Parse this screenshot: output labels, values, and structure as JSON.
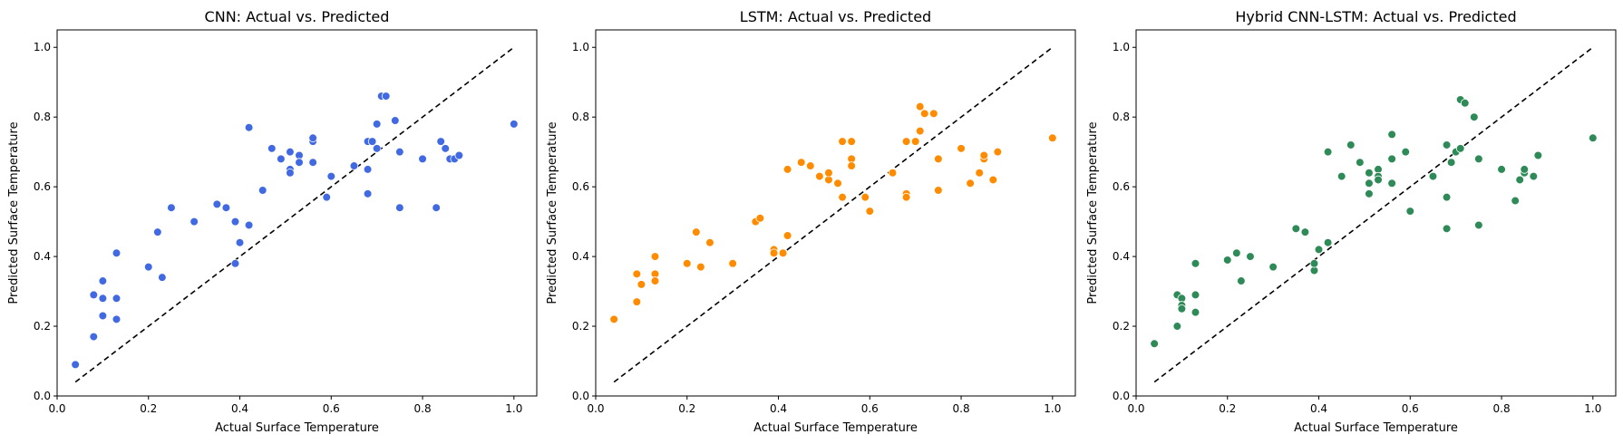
{
  "chart_data": [
    {
      "type": "scatter",
      "title": "CNN: Actual vs. Predicted",
      "xlabel": "Actual Surface Temperature",
      "ylabel": "Predicted Surface Temperature",
      "xlim": [
        0.0,
        1.05
      ],
      "ylim": [
        0.0,
        1.05
      ],
      "xticks": [
        "0.0",
        "0.2",
        "0.4",
        "0.6",
        "0.8",
        "1.0"
      ],
      "yticks": [
        "0.0",
        "0.2",
        "0.4",
        "0.6",
        "0.8",
        "1.0"
      ],
      "color": "#4169e1",
      "reference_line": {
        "x": [
          0.04,
          1.0
        ],
        "y": [
          0.04,
          1.0
        ],
        "style": "dashed",
        "color": "#000000"
      },
      "points": [
        [
          0.04,
          0.09
        ],
        [
          0.08,
          0.29
        ],
        [
          0.08,
          0.17
        ],
        [
          0.1,
          0.28
        ],
        [
          0.1,
          0.33
        ],
        [
          0.1,
          0.23
        ],
        [
          0.13,
          0.41
        ],
        [
          0.13,
          0.28
        ],
        [
          0.13,
          0.22
        ],
        [
          0.2,
          0.37
        ],
        [
          0.22,
          0.47
        ],
        [
          0.23,
          0.34
        ],
        [
          0.25,
          0.54
        ],
        [
          0.3,
          0.5
        ],
        [
          0.35,
          0.55
        ],
        [
          0.37,
          0.54
        ],
        [
          0.39,
          0.5
        ],
        [
          0.39,
          0.38
        ],
        [
          0.4,
          0.44
        ],
        [
          0.42,
          0.49
        ],
        [
          0.42,
          0.77
        ],
        [
          0.45,
          0.59
        ],
        [
          0.47,
          0.71
        ],
        [
          0.49,
          0.68
        ],
        [
          0.51,
          0.7
        ],
        [
          0.51,
          0.65
        ],
        [
          0.51,
          0.64
        ],
        [
          0.53,
          0.69
        ],
        [
          0.53,
          0.67
        ],
        [
          0.53,
          0.67
        ],
        [
          0.56,
          0.73
        ],
        [
          0.56,
          0.74
        ],
        [
          0.56,
          0.67
        ],
        [
          0.59,
          0.57
        ],
        [
          0.6,
          0.63
        ],
        [
          0.65,
          0.66
        ],
        [
          0.68,
          0.73
        ],
        [
          0.68,
          0.65
        ],
        [
          0.68,
          0.58
        ],
        [
          0.69,
          0.73
        ],
        [
          0.7,
          0.78
        ],
        [
          0.7,
          0.71
        ],
        [
          0.71,
          0.86
        ],
        [
          0.72,
          0.86
        ],
        [
          0.74,
          0.79
        ],
        [
          0.75,
          0.7
        ],
        [
          0.75,
          0.54
        ],
        [
          0.8,
          0.68
        ],
        [
          0.83,
          0.54
        ],
        [
          0.84,
          0.73
        ],
        [
          0.85,
          0.71
        ],
        [
          0.86,
          0.68
        ],
        [
          0.87,
          0.68
        ],
        [
          0.88,
          0.69
        ],
        [
          1.0,
          0.78
        ]
      ]
    },
    {
      "type": "scatter",
      "title": "LSTM: Actual vs. Predicted",
      "xlabel": "Actual Surface Temperature",
      "ylabel": "Predicted Surface Temperature",
      "xlim": [
        0.0,
        1.05
      ],
      "ylim": [
        0.0,
        1.05
      ],
      "xticks": [
        "0.0",
        "0.2",
        "0.4",
        "0.6",
        "0.8",
        "1.0"
      ],
      "yticks": [
        "0.0",
        "0.2",
        "0.4",
        "0.6",
        "0.8",
        "1.0"
      ],
      "color": "#ff8c00",
      "reference_line": {
        "x": [
          0.04,
          1.0
        ],
        "y": [
          0.04,
          1.0
        ],
        "style": "dashed",
        "color": "#000000"
      },
      "points": [
        [
          0.04,
          0.22
        ],
        [
          0.09,
          0.35
        ],
        [
          0.09,
          0.27
        ],
        [
          0.1,
          0.32
        ],
        [
          0.13,
          0.4
        ],
        [
          0.13,
          0.35
        ],
        [
          0.13,
          0.33
        ],
        [
          0.13,
          0.33
        ],
        [
          0.2,
          0.38
        ],
        [
          0.22,
          0.47
        ],
        [
          0.23,
          0.37
        ],
        [
          0.25,
          0.44
        ],
        [
          0.3,
          0.38
        ],
        [
          0.35,
          0.5
        ],
        [
          0.36,
          0.51
        ],
        [
          0.39,
          0.42
        ],
        [
          0.39,
          0.41
        ],
        [
          0.41,
          0.41
        ],
        [
          0.42,
          0.46
        ],
        [
          0.42,
          0.65
        ],
        [
          0.45,
          0.67
        ],
        [
          0.47,
          0.66
        ],
        [
          0.49,
          0.63
        ],
        [
          0.51,
          0.62
        ],
        [
          0.51,
          0.64
        ],
        [
          0.53,
          0.61
        ],
        [
          0.54,
          0.57
        ],
        [
          0.54,
          0.73
        ],
        [
          0.56,
          0.68
        ],
        [
          0.56,
          0.66
        ],
        [
          0.56,
          0.73
        ],
        [
          0.59,
          0.57
        ],
        [
          0.6,
          0.53
        ],
        [
          0.65,
          0.64
        ],
        [
          0.68,
          0.73
        ],
        [
          0.68,
          0.58
        ],
        [
          0.68,
          0.57
        ],
        [
          0.7,
          0.73
        ],
        [
          0.71,
          0.76
        ],
        [
          0.71,
          0.83
        ],
        [
          0.72,
          0.81
        ],
        [
          0.74,
          0.81
        ],
        [
          0.75,
          0.68
        ],
        [
          0.75,
          0.59
        ],
        [
          0.8,
          0.71
        ],
        [
          0.82,
          0.61
        ],
        [
          0.84,
          0.64
        ],
        [
          0.85,
          0.68
        ],
        [
          0.85,
          0.69
        ],
        [
          0.87,
          0.62
        ],
        [
          0.88,
          0.7
        ],
        [
          1.0,
          0.74
        ]
      ]
    },
    {
      "type": "scatter",
      "title": "Hybrid CNN-LSTM: Actual vs. Predicted",
      "xlabel": "Actual Surface Temperature",
      "ylabel": "Predicted Surface Temperature",
      "xlim": [
        0.0,
        1.05
      ],
      "ylim": [
        0.0,
        1.05
      ],
      "xticks": [
        "0.0",
        "0.2",
        "0.4",
        "0.6",
        "0.8",
        "1.0"
      ],
      "yticks": [
        "0.0",
        "0.2",
        "0.4",
        "0.6",
        "0.8",
        "1.0"
      ],
      "color": "#2e8b57",
      "reference_line": {
        "x": [
          0.04,
          1.0
        ],
        "y": [
          0.04,
          1.0
        ],
        "style": "dashed",
        "color": "#000000"
      },
      "points": [
        [
          0.04,
          0.15
        ],
        [
          0.09,
          0.29
        ],
        [
          0.09,
          0.2
        ],
        [
          0.1,
          0.28
        ],
        [
          0.1,
          0.26
        ],
        [
          0.1,
          0.25
        ],
        [
          0.13,
          0.38
        ],
        [
          0.13,
          0.29
        ],
        [
          0.13,
          0.24
        ],
        [
          0.2,
          0.39
        ],
        [
          0.22,
          0.41
        ],
        [
          0.23,
          0.33
        ],
        [
          0.25,
          0.4
        ],
        [
          0.3,
          0.37
        ],
        [
          0.35,
          0.48
        ],
        [
          0.37,
          0.47
        ],
        [
          0.39,
          0.36
        ],
        [
          0.39,
          0.38
        ],
        [
          0.4,
          0.42
        ],
        [
          0.42,
          0.44
        ],
        [
          0.42,
          0.7
        ],
        [
          0.45,
          0.63
        ],
        [
          0.47,
          0.72
        ],
        [
          0.49,
          0.67
        ],
        [
          0.51,
          0.64
        ],
        [
          0.51,
          0.61
        ],
        [
          0.51,
          0.58
        ],
        [
          0.53,
          0.65
        ],
        [
          0.53,
          0.63
        ],
        [
          0.53,
          0.62
        ],
        [
          0.56,
          0.68
        ],
        [
          0.56,
          0.61
        ],
        [
          0.56,
          0.75
        ],
        [
          0.59,
          0.7
        ],
        [
          0.6,
          0.53
        ],
        [
          0.65,
          0.63
        ],
        [
          0.68,
          0.72
        ],
        [
          0.68,
          0.57
        ],
        [
          0.68,
          0.48
        ],
        [
          0.69,
          0.67
        ],
        [
          0.7,
          0.7
        ],
        [
          0.71,
          0.71
        ],
        [
          0.71,
          0.85
        ],
        [
          0.72,
          0.84
        ],
        [
          0.74,
          0.8
        ],
        [
          0.75,
          0.68
        ],
        [
          0.75,
          0.49
        ],
        [
          0.8,
          0.65
        ],
        [
          0.83,
          0.56
        ],
        [
          0.84,
          0.62
        ],
        [
          0.85,
          0.64
        ],
        [
          0.85,
          0.65
        ],
        [
          0.87,
          0.63
        ],
        [
          0.88,
          0.69
        ],
        [
          1.0,
          0.74
        ]
      ]
    }
  ]
}
